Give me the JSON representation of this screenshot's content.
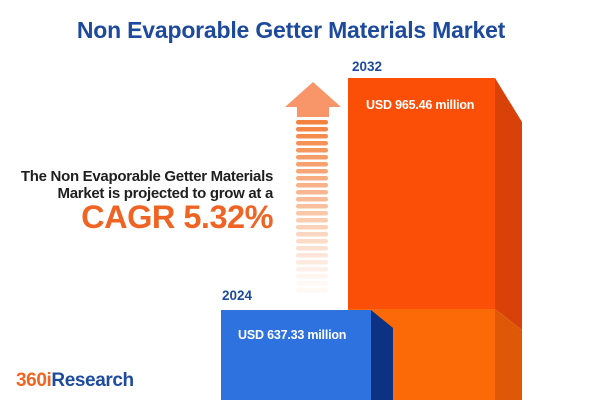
{
  "title": "Non Evaporable Getter Materials Market",
  "annotation": {
    "line1": "The Non Evaporable Getter Materials",
    "line2": "Market is projected to grow at a",
    "cagr": "CAGR 5.32%"
  },
  "chart_data": {
    "type": "bar",
    "categories": [
      "2024",
      "2032"
    ],
    "values": [
      637.33,
      965.46
    ],
    "value_labels": [
      "USD 637.33 million",
      "USD 965.46 million"
    ],
    "unit": "USD million",
    "cagr_percent": 5.32,
    "title": "Non Evaporable Getter Materials Market"
  },
  "bars": {
    "y2024": {
      "year": "2024",
      "value_label": "USD 637.33 million"
    },
    "y2032": {
      "year": "2032",
      "value_label": "USD 965.46 million"
    }
  },
  "logo": {
    "prefix": "360i",
    "suffix": "Research"
  },
  "colors": {
    "title_navy": "#1e4a9e",
    "cagr_orange": "#ef6424",
    "orange_front_top": "#fb4e06",
    "orange_front_bottom": "#fb6a06",
    "orange_side_top": "#d84208",
    "orange_side_bottom": "#de5808",
    "blue_front": "#2e72e0",
    "blue_side": "#0d3183",
    "arrow_head": "#f8966a",
    "arrow_stripe": "#f4823f",
    "text_dark": "#1f1f1f"
  }
}
